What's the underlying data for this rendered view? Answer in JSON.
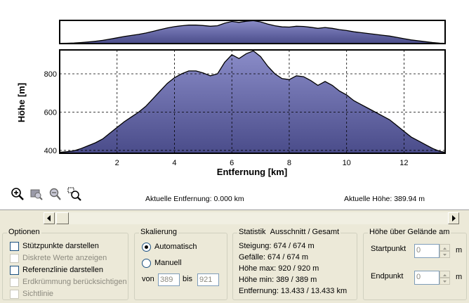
{
  "chart_data": [
    {
      "type": "area",
      "title": "",
      "xlabel": "",
      "ylabel": "",
      "x": [
        0,
        0.25,
        0.5,
        0.75,
        1,
        1.25,
        1.5,
        1.75,
        2,
        2.25,
        2.5,
        2.75,
        3,
        3.25,
        3.5,
        3.75,
        4,
        4.25,
        4.5,
        4.75,
        5,
        5.25,
        5.5,
        5.75,
        6,
        6.25,
        6.5,
        6.75,
        7,
        7.25,
        7.5,
        7.75,
        8,
        8.25,
        8.5,
        8.75,
        9,
        9.25,
        9.5,
        9.75,
        10,
        10.25,
        10.5,
        10.75,
        11,
        11.25,
        11.5,
        11.75,
        12,
        12.25,
        12.5,
        12.75,
        13,
        13.25,
        13.43
      ],
      "values": [
        390,
        393,
        398,
        410,
        425,
        440,
        460,
        490,
        520,
        550,
        575,
        600,
        630,
        670,
        710,
        750,
        780,
        800,
        815,
        815,
        805,
        790,
        800,
        860,
        900,
        880,
        905,
        920,
        890,
        840,
        800,
        775,
        770,
        790,
        785,
        765,
        740,
        760,
        740,
        710,
        690,
        660,
        640,
        620,
        600,
        580,
        560,
        530,
        500,
        470,
        450,
        430,
        410,
        395,
        390
      ],
      "ylim": [
        385,
        925
      ]
    },
    {
      "type": "area",
      "title": "",
      "xlabel": "Entfernung [km]",
      "ylabel": "Höhe [m]",
      "x": [
        0,
        0.25,
        0.5,
        0.75,
        1,
        1.25,
        1.5,
        1.75,
        2,
        2.25,
        2.5,
        2.75,
        3,
        3.25,
        3.5,
        3.75,
        4,
        4.25,
        4.5,
        4.75,
        5,
        5.25,
        5.5,
        5.75,
        6,
        6.25,
        6.5,
        6.75,
        7,
        7.25,
        7.5,
        7.75,
        8,
        8.25,
        8.5,
        8.75,
        9,
        9.25,
        9.5,
        9.75,
        10,
        10.25,
        10.5,
        10.75,
        11,
        11.25,
        11.5,
        11.75,
        12,
        12.25,
        12.5,
        12.75,
        13,
        13.25,
        13.43
      ],
      "values": [
        390,
        393,
        398,
        410,
        425,
        440,
        460,
        490,
        520,
        550,
        575,
        600,
        630,
        670,
        710,
        750,
        780,
        800,
        815,
        815,
        805,
        790,
        800,
        860,
        900,
        880,
        905,
        920,
        890,
        840,
        800,
        775,
        770,
        790,
        785,
        765,
        740,
        760,
        740,
        710,
        690,
        660,
        640,
        620,
        600,
        580,
        560,
        530,
        500,
        470,
        450,
        430,
        410,
        395,
        390
      ],
      "xlim": [
        0,
        13.433
      ],
      "ylim": [
        385,
        925
      ],
      "xticks": [
        2,
        4,
        6,
        8,
        10,
        12
      ],
      "yticks": [
        400,
        600,
        800
      ],
      "grid": true
    }
  ],
  "colors": {
    "fill_top": "#8a8cc8",
    "fill_bottom": "#4a4c8a",
    "outline": "#000000"
  },
  "toolbar": {
    "icons": [
      "zoom-in-icon",
      "zoom-out-icon",
      "zoom-reset-icon",
      "zoom-region-icon"
    ]
  },
  "status": {
    "distance": "Aktuelle Entfernung: 0.000 km",
    "height": "Aktuelle Höhe: 389.94 m"
  },
  "optionen": {
    "title": "Optionen",
    "items": [
      {
        "label": "Stützpunkte darstellen",
        "checked": false,
        "enabled": true
      },
      {
        "label": "Diskrete Werte anzeigen",
        "checked": false,
        "enabled": false
      },
      {
        "label": "Referenzlinie darstellen",
        "checked": false,
        "enabled": true
      },
      {
        "label": "Erdkrümmung berücksichtigen",
        "checked": false,
        "enabled": false
      },
      {
        "label": "Sichtlinie",
        "checked": false,
        "enabled": false
      }
    ]
  },
  "skalierung": {
    "title": "Skalierung",
    "auto_label": "Automatisch",
    "manual_label": "Manuell",
    "selected": "Automatisch",
    "from_label": "von",
    "from_value": "389",
    "to_label": "bis",
    "to_value": "921"
  },
  "statistik": {
    "title": "Statistik",
    "subtitle": "Ausschnitt / Gesamt",
    "rows": [
      "Steigung: 674 / 674 m",
      "Gefälle: 674 / 674 m",
      "Höhe max: 920 / 920 m",
      "Höhe min: 389 / 389 m",
      "Entfernung: 13.433 / 13.433 km"
    ]
  },
  "hoehe": {
    "title": "Höhe über Gelände am",
    "start_label": "Startpunkt",
    "start_value": "0",
    "end_label": "Endpunkt",
    "end_value": "0",
    "unit": "m"
  }
}
